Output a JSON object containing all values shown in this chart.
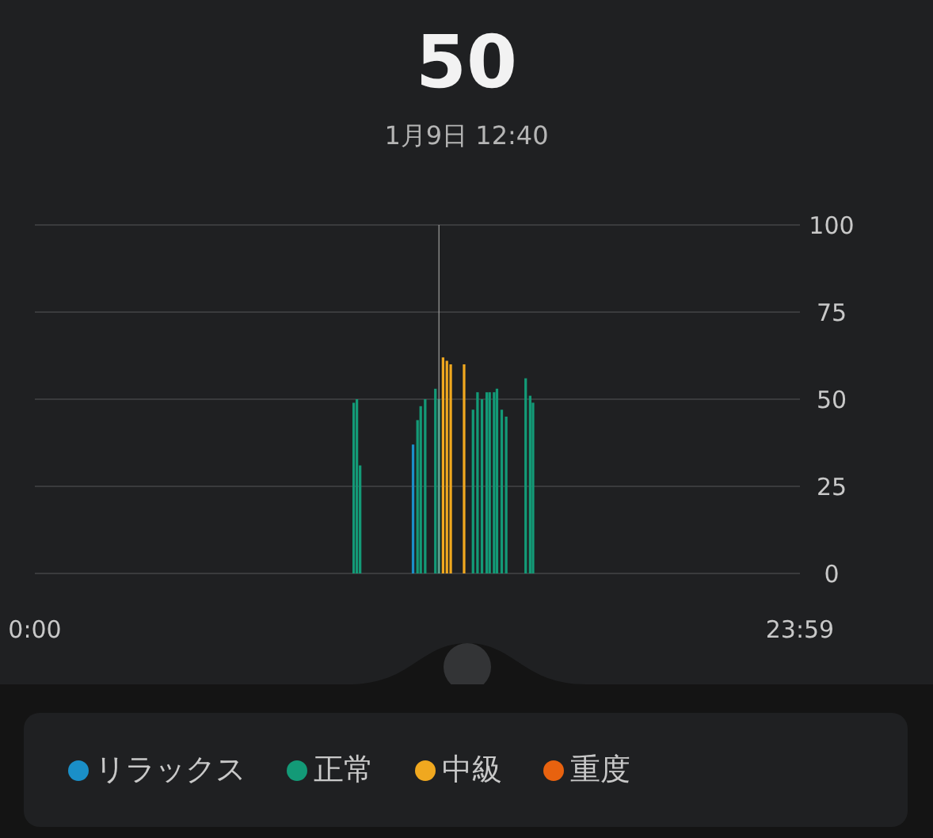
{
  "chart_data": {
    "type": "bar",
    "title": "50",
    "subtitle": "1月9日 12:40",
    "xlim": [
      0,
      23.983
    ],
    "xticks": [
      {
        "value": 0,
        "label": "0:00"
      },
      {
        "value": 23.983,
        "label": "23:59"
      }
    ],
    "ylim": [
      0,
      100
    ],
    "yticks": [
      0,
      25,
      50,
      75,
      100
    ],
    "grid": "y",
    "legend": "bottom",
    "ref_lines": [
      {
        "axis": "x",
        "value": 12.667,
        "color": "#9e9e9e"
      }
    ],
    "series": [
      {
        "name": "リラックス",
        "color": "#1a8fc8",
        "x": [
          11.86
        ],
        "values": [
          37
        ]
      },
      {
        "name": "正常",
        "color": "#139a77",
        "x": [
          10.0,
          10.1,
          10.2,
          12.0,
          12.1,
          12.24,
          12.56,
          12.67,
          13.74,
          13.88,
          14.02,
          14.17,
          14.26,
          14.4,
          14.49,
          14.64,
          14.78,
          15.39,
          15.53,
          15.62
        ],
        "values": [
          49,
          50,
          31,
          44,
          48,
          50,
          53,
          50,
          47,
          52,
          50,
          52,
          52,
          52,
          53,
          47,
          45,
          56,
          51,
          49
        ]
      },
      {
        "name": "中級",
        "color": "#f0a81f",
        "x": [
          12.8,
          12.92,
          13.04,
          13.46
        ],
        "values": [
          62,
          61,
          60,
          60
        ]
      },
      {
        "name": "重度",
        "color": "#e8620f"
      }
    ]
  }
}
